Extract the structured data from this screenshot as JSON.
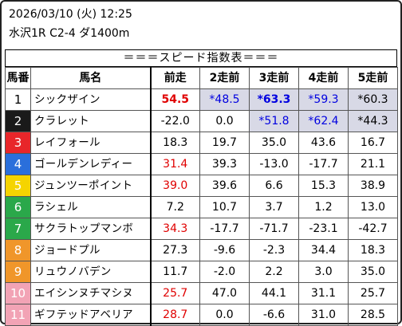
{
  "header": {
    "datetime": "2026/03/10 (火) 12:25",
    "race": "水沢1R C2-4 ダ1400m"
  },
  "table": {
    "title": "＝＝＝スピード指数表＝＝＝",
    "columns": [
      "馬番",
      "馬名",
      "前走",
      "2走前",
      "3走前",
      "4走前",
      "5走前"
    ],
    "rows": [
      {
        "no": "1",
        "name": "シックザイン",
        "v": [
          "54.5",
          "*48.5",
          "*63.3",
          "*59.3",
          "*60.3"
        ]
      },
      {
        "no": "2",
        "name": "クラレット",
        "v": [
          "-22.0",
          "0.0",
          "*51.8",
          "*62.4",
          "*44.3"
        ]
      },
      {
        "no": "3",
        "name": "レイフォール",
        "v": [
          "18.3",
          "19.7",
          "35.0",
          "43.6",
          "16.7"
        ]
      },
      {
        "no": "4",
        "name": "ゴールデンレディー",
        "v": [
          "31.4",
          "39.3",
          "-13.0",
          "-17.7",
          "21.1"
        ]
      },
      {
        "no": "5",
        "name": "ジュンツーポイント",
        "v": [
          "39.0",
          "39.6",
          "6.6",
          "15.3",
          "38.9"
        ]
      },
      {
        "no": "6",
        "name": "ラシェル",
        "v": [
          "7.2",
          "10.7",
          "3.7",
          "1.2",
          "13.0"
        ]
      },
      {
        "no": "7",
        "name": "サクラトップマンボ",
        "v": [
          "34.3",
          "-17.7",
          "-71.7",
          "-23.1",
          "-42.7"
        ]
      },
      {
        "no": "8",
        "name": "ジョードプル",
        "v": [
          "27.3",
          "-9.6",
          "-2.3",
          "34.4",
          "18.3"
        ]
      },
      {
        "no": "9",
        "name": "リュウノバデン",
        "v": [
          "11.7",
          "-2.0",
          "2.2",
          "3.0",
          "35.0"
        ]
      },
      {
        "no": "10",
        "name": "エイシンヌチマシヌ",
        "v": [
          "25.7",
          "47.0",
          "44.1",
          "31.1",
          "25.7"
        ]
      },
      {
        "no": "11",
        "name": "ギフテッドアベリア",
        "v": [
          "28.7",
          "0.0",
          "-6.6",
          "31.0",
          "28.5"
        ]
      }
    ]
  },
  "colors": {
    "gate": [
      {
        "bg": "#ffffff",
        "fg": "#000000"
      },
      {
        "bg": "#1a1a1a",
        "fg": "#ffffff"
      },
      {
        "bg": "#e8262a",
        "fg": "#ffffff"
      },
      {
        "bg": "#2a6fdb",
        "fg": "#ffffff"
      },
      {
        "bg": "#f5d400",
        "fg": "#ffffff"
      },
      {
        "bg": "#2aa84a",
        "fg": "#ffffff"
      },
      {
        "bg": "#2aa84a",
        "fg": "#ffffff"
      },
      {
        "bg": "#f0962a",
        "fg": "#ffffff"
      },
      {
        "bg": "#f0962a",
        "fg": "#ffffff"
      },
      {
        "bg": "#f2a3b5",
        "fg": "#ffffff"
      },
      {
        "bg": "#f2a3b5",
        "fg": "#ffffff"
      }
    ],
    "value_red": "#e00000",
    "value_blue": "#0000e0",
    "highlight_bg": "#d8d9e6"
  },
  "styles": {
    "red_cells": [
      "0.0",
      "3.0",
      "4.0",
      "6.0",
      "9.0",
      "10.0"
    ],
    "blue_cells": [
      "0.1",
      "0.2",
      "0.3",
      "1.2",
      "1.3"
    ],
    "bold_cells": [
      "0.0",
      "0.2"
    ],
    "shaded_cells": [
      "0.1",
      "0.2",
      "0.3",
      "0.4",
      "1.2",
      "1.3",
      "1.4"
    ]
  }
}
